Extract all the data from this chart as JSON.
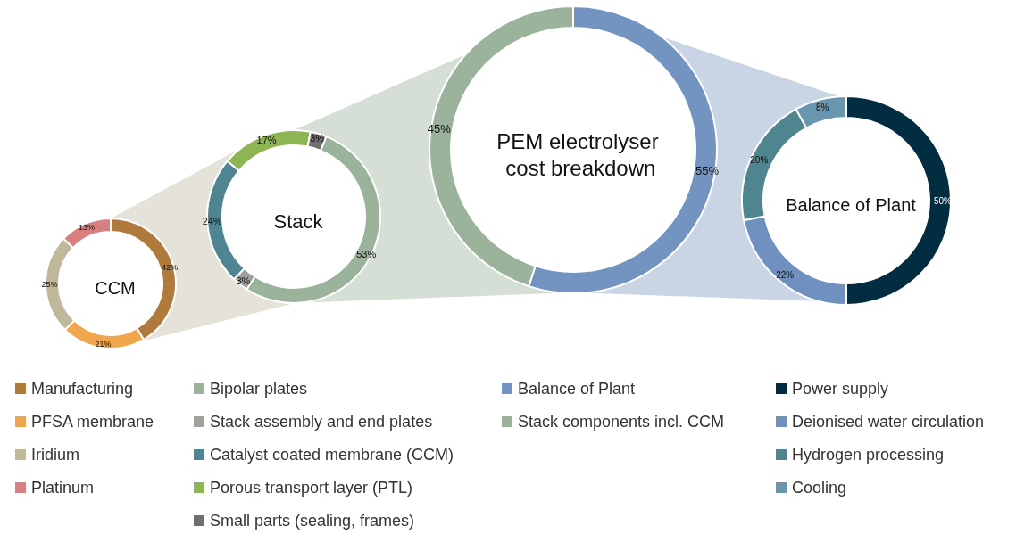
{
  "chart_data": [
    {
      "type": "donut",
      "title": "CCM",
      "categories": [
        "Manufacturing",
        "PFSA membrane",
        "Iridium",
        "Platinum"
      ],
      "values": [
        42,
        21,
        25,
        13
      ],
      "colors": [
        "#b07a3c",
        "#f0a64c",
        "#bfb89a",
        "#d88080"
      ],
      "value_labels": [
        "42%",
        "21%",
        "25%",
        "13%"
      ],
      "legend": "bottom"
    },
    {
      "type": "donut",
      "title": "Stack",
      "categories": [
        "Bipolar plates",
        "Stack assembly and end plates",
        "Catalyst coated membrane (CCM)",
        "Porous transport layer (PTL)",
        "Small parts (sealing, frames)"
      ],
      "values": [
        53,
        3,
        24,
        17,
        3
      ],
      "colors": [
        "#9ab39a",
        "#a0a09c",
        "#4e8590",
        "#8db553",
        "#6f6f73"
      ],
      "value_labels": [
        "53%",
        "3%",
        "24%",
        "17%",
        "3%"
      ],
      "legend": "bottom"
    },
    {
      "type": "donut",
      "title": "PEM electrolyser cost breakdown",
      "categories": [
        "Balance of Plant",
        "Stack components incl. CCM"
      ],
      "values": [
        55,
        45
      ],
      "colors": [
        "#7393c0",
        "#9ab39a"
      ],
      "value_labels": [
        "55%",
        "45%"
      ],
      "legend": "bottom"
    },
    {
      "type": "donut",
      "title": "Balance of Plant",
      "categories": [
        "Power supply",
        "Deionised water circulation",
        "Hydrogen processing",
        "Cooling"
      ],
      "values": [
        50,
        22,
        20,
        8
      ],
      "colors": [
        "#022c3f",
        "#7090c0",
        "#4e858f",
        "#6995ae"
      ],
      "value_labels": [
        "50%",
        "22%",
        "20%",
        "8%"
      ],
      "legend": "bottom"
    }
  ]
}
